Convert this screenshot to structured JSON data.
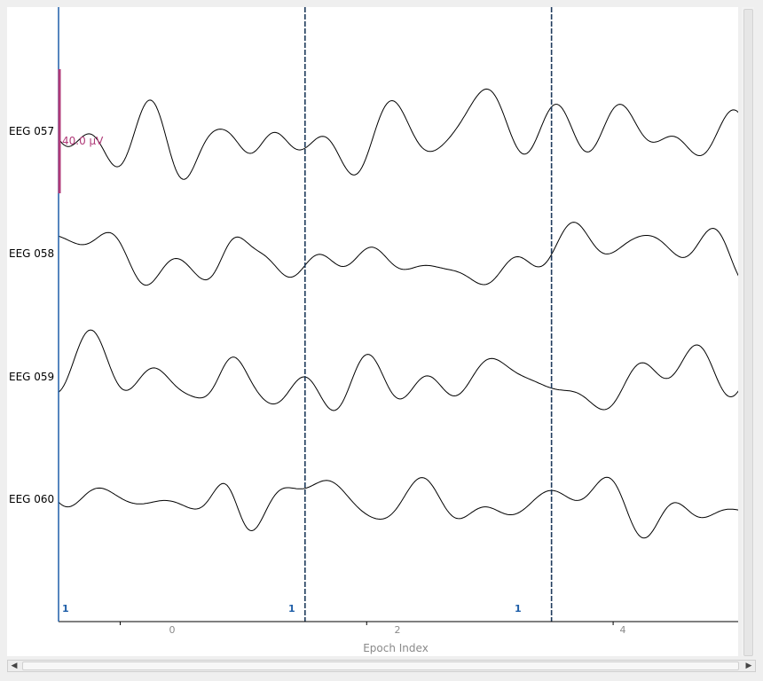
{
  "channels": [
    {
      "name": "EEG 057"
    },
    {
      "name": "EEG 058"
    },
    {
      "name": "EEG 059"
    },
    {
      "name": "EEG 060"
    }
  ],
  "scale_bar": {
    "label": "40.0 µV",
    "color": "#b03a78"
  },
  "x_axis": {
    "title": "Epoch Index",
    "ticks": [
      "0",
      "2",
      "4"
    ]
  },
  "epoch_markers": [
    "1",
    "1",
    "1"
  ],
  "colors": {
    "trace": "#000000",
    "epoch_line": "#1f3b5c",
    "epoch_label": "#1f5fa8",
    "axis": "#1f5fa8"
  },
  "scrollbars": {
    "left_arrow": "◀",
    "right_arrow": "▶"
  },
  "chart_data": {
    "type": "line",
    "xlabel": "Epoch Index",
    "xlim": [
      -0.5,
      5.0
    ],
    "x_ticks": [
      0,
      2,
      4
    ],
    "epoch_boundaries": [
      -0.5,
      1.5,
      3.5
    ],
    "series": [
      {
        "name": "EEG 057"
      },
      {
        "name": "EEG 058"
      },
      {
        "name": "EEG 059"
      },
      {
        "name": "EEG 060"
      }
    ]
  }
}
